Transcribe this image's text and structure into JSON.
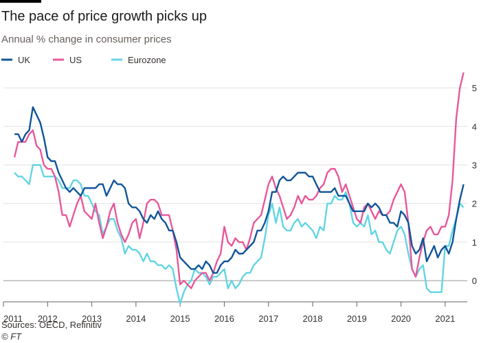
{
  "chart_data": {
    "type": "line",
    "title": "The pace of price growth picks up",
    "subtitle": "Annual % change in consumer prices",
    "source": "Sources: OECD, Refinitiv",
    "credit": "© FT",
    "x": [
      2011.25,
      2011.333,
      2011.417,
      2011.5,
      2011.583,
      2011.667,
      2011.75,
      2011.833,
      2011.917,
      2012,
      2012.083,
      2012.167,
      2012.25,
      2012.333,
      2012.417,
      2012.5,
      2012.583,
      2012.667,
      2012.75,
      2012.833,
      2012.917,
      2013,
      2013.083,
      2013.167,
      2013.25,
      2013.333,
      2013.417,
      2013.5,
      2013.583,
      2013.667,
      2013.75,
      2013.833,
      2013.917,
      2014,
      2014.083,
      2014.167,
      2014.25,
      2014.333,
      2014.417,
      2014.5,
      2014.583,
      2014.667,
      2014.75,
      2014.833,
      2014.917,
      2015,
      2015.083,
      2015.167,
      2015.25,
      2015.333,
      2015.417,
      2015.5,
      2015.583,
      2015.667,
      2015.75,
      2015.833,
      2015.917,
      2016,
      2016.083,
      2016.167,
      2016.25,
      2016.333,
      2016.417,
      2016.5,
      2016.583,
      2016.667,
      2016.75,
      2016.833,
      2016.917,
      2017,
      2017.083,
      2017.167,
      2017.25,
      2017.333,
      2017.417,
      2017.5,
      2017.583,
      2017.667,
      2017.75,
      2017.833,
      2017.917,
      2018,
      2018.083,
      2018.167,
      2018.25,
      2018.333,
      2018.417,
      2018.5,
      2018.583,
      2018.667,
      2018.75,
      2018.833,
      2018.917,
      2019,
      2019.083,
      2019.167,
      2019.25,
      2019.333,
      2019.417,
      2019.5,
      2019.583,
      2019.667,
      2019.75,
      2019.833,
      2019.917,
      2020,
      2020.083,
      2020.167,
      2020.25,
      2020.333,
      2020.417,
      2020.5,
      2020.583,
      2020.667,
      2020.75,
      2020.833,
      2020.917,
      2021,
      2021.083,
      2021.167,
      2021.25,
      2021.333,
      2021.417
    ],
    "series": [
      {
        "name": "UK",
        "color": "#0f5499",
        "values": [
          3.8,
          3.8,
          3.6,
          3.8,
          3.9,
          4.5,
          4.3,
          4.1,
          3.7,
          3.2,
          3.1,
          3.1,
          2.8,
          2.6,
          2.4,
          2.3,
          2.4,
          2.3,
          2.2,
          2.4,
          2.4,
          2.4,
          2.4,
          2.5,
          2.5,
          2.2,
          2.4,
          2.6,
          2.5,
          2.5,
          2.4,
          2.0,
          1.9,
          1.9,
          1.8,
          1.6,
          1.5,
          1.7,
          1.6,
          1.8,
          1.6,
          1.5,
          1.3,
          1.3,
          1.0,
          0.6,
          0.5,
          0.4,
          0.3,
          0.3,
          0.4,
          0.3,
          0.5,
          0.4,
          0.2,
          0.2,
          0.4,
          0.5,
          0.5,
          0.6,
          0.8,
          0.7,
          0.7,
          0.8,
          0.9,
          1.0,
          1.3,
          1.3,
          1.5,
          1.8,
          2.3,
          2.3,
          2.6,
          2.7,
          2.6,
          2.6,
          2.7,
          2.8,
          2.8,
          2.8,
          2.7,
          2.7,
          2.5,
          2.3,
          2.3,
          2.3,
          2.3,
          2.4,
          2.2,
          2.2,
          2.2,
          2.0,
          1.8,
          1.8,
          1.8,
          1.8,
          2.0,
          1.9,
          2.0,
          1.9,
          1.7,
          1.7,
          1.5,
          1.5,
          1.4,
          1.8,
          1.7,
          1.5,
          0.9,
          0.7,
          0.8,
          1.1,
          0.5,
          0.7,
          0.9,
          0.6,
          0.8,
          0.9,
          0.7,
          1.0,
          1.6,
          2.1,
          2.5
        ]
      },
      {
        "name": "US",
        "color": "#e8579a",
        "values": [
          3.2,
          3.6,
          3.6,
          3.6,
          3.8,
          3.9,
          3.5,
          3.4,
          3.0,
          2.9,
          2.9,
          2.7,
          2.3,
          1.7,
          1.7,
          1.4,
          1.7,
          2.0,
          2.2,
          1.8,
          1.7,
          1.6,
          2.0,
          1.5,
          1.1,
          1.4,
          1.8,
          2.0,
          1.5,
          1.2,
          1.0,
          1.2,
          1.5,
          1.6,
          1.1,
          1.5,
          2.0,
          2.1,
          2.1,
          2.0,
          1.7,
          1.7,
          1.7,
          1.3,
          0.8,
          -0.1,
          0.0,
          -0.1,
          -0.2,
          0.0,
          0.1,
          0.2,
          0.2,
          0.0,
          0.2,
          0.5,
          0.7,
          1.4,
          1.0,
          0.9,
          1.1,
          1.0,
          1.0,
          0.8,
          1.1,
          1.5,
          1.6,
          1.7,
          2.1,
          2.5,
          2.7,
          2.4,
          2.2,
          1.9,
          1.6,
          1.7,
          1.9,
          2.2,
          2.0,
          2.2,
          2.1,
          2.1,
          2.2,
          2.4,
          2.5,
          2.8,
          2.9,
          2.9,
          2.7,
          2.3,
          2.5,
          2.2,
          1.9,
          1.6,
          1.5,
          1.9,
          2.0,
          1.8,
          1.6,
          1.8,
          1.7,
          1.7,
          1.8,
          2.1,
          2.3,
          2.5,
          2.3,
          1.5,
          0.3,
          0.1,
          0.6,
          1.0,
          1.3,
          1.4,
          1.2,
          1.2,
          1.4,
          1.4,
          1.7,
          2.6,
          4.2,
          5.0,
          5.4
        ]
      },
      {
        "name": "Eurozone",
        "color": "#62d4e3",
        "values": [
          2.8,
          2.7,
          2.7,
          2.6,
          2.5,
          3.0,
          3.0,
          3.0,
          2.7,
          2.7,
          2.7,
          2.7,
          2.6,
          2.4,
          2.4,
          2.4,
          2.6,
          2.6,
          2.5,
          2.2,
          2.2,
          2.0,
          1.8,
          1.7,
          1.2,
          1.4,
          1.6,
          1.6,
          1.3,
          1.1,
          0.7,
          0.9,
          0.8,
          0.8,
          0.7,
          0.5,
          0.7,
          0.5,
          0.5,
          0.4,
          0.4,
          0.3,
          0.4,
          0.3,
          -0.2,
          -0.6,
          -0.3,
          -0.1,
          0.0,
          0.3,
          0.2,
          0.2,
          0.1,
          -0.1,
          0.1,
          0.1,
          0.2,
          0.3,
          -0.2,
          0.0,
          -0.2,
          -0.1,
          0.1,
          0.2,
          0.2,
          0.4,
          0.5,
          0.6,
          1.1,
          1.7,
          2.0,
          1.5,
          1.9,
          1.4,
          1.3,
          1.3,
          1.5,
          1.6,
          1.4,
          1.5,
          1.4,
          1.3,
          1.1,
          1.4,
          1.3,
          2.0,
          2.0,
          2.2,
          2.1,
          2.1,
          2.3,
          2.0,
          1.5,
          1.4,
          1.5,
          1.4,
          1.7,
          1.2,
          1.3,
          1.0,
          1.0,
          0.8,
          0.7,
          1.0,
          1.3,
          1.4,
          1.2,
          0.7,
          0.3,
          0.1,
          0.3,
          0.4,
          -0.2,
          -0.3,
          -0.3,
          -0.3,
          -0.3,
          0.9,
          0.9,
          1.3,
          1.6,
          2.0,
          1.9
        ]
      }
    ],
    "xlim": [
      2011,
      2021.5
    ],
    "xticks": [
      2011,
      2012,
      2013,
      2014,
      2015,
      2016,
      2017,
      2018,
      2019,
      2020,
      2021
    ],
    "ylim": [
      -0.55,
      5.5
    ],
    "yticks": [
      0,
      1,
      2,
      3,
      4,
      5
    ],
    "grid": true,
    "legend": "top-left"
  }
}
